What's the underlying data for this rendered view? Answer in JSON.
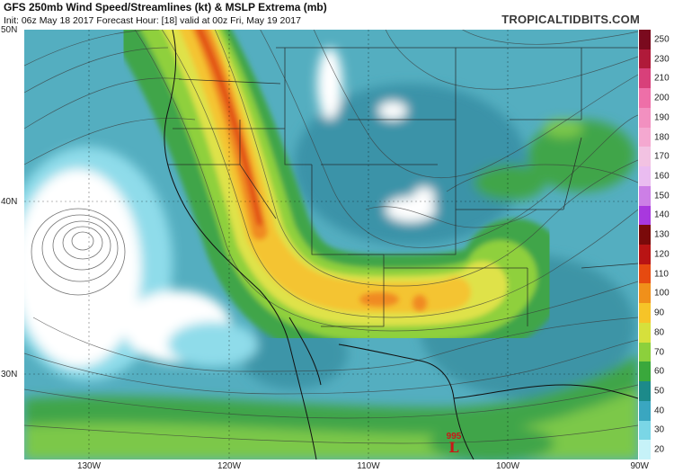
{
  "header": {
    "title": "GFS 250mb Wind Speed/Streamlines (kt) & MSLP Extrema (mb)",
    "subtitle": "Init: 06z May 18 2017   Forecast Hour: [18]   valid at 00z Fri, May 19 2017",
    "brand": "TROPICALTIDBITS.COM"
  },
  "map": {
    "lat_labels": [
      "50N",
      "40N",
      "30N"
    ],
    "lon_labels": [
      "130W",
      "120W",
      "110W",
      "100W",
      "90W"
    ],
    "extremum": {
      "value": "995",
      "letter": "L",
      "color": "#c81818"
    }
  },
  "colorbar": {
    "unit": "kt",
    "labels": [
      "250",
      "230",
      "210",
      "200",
      "190",
      "180",
      "170",
      "160",
      "150",
      "140",
      "130",
      "120",
      "110",
      "100",
      "90",
      "80",
      "70",
      "60",
      "50",
      "40",
      "30",
      "20"
    ],
    "colors": [
      "#7a0a1e",
      "#b01a3a",
      "#d8407a",
      "#ee6fa8",
      "#f290c0",
      "#f4a8d0",
      "#f2c2e2",
      "#eabcf0",
      "#cc7fe6",
      "#a838de",
      "#7a0a0a",
      "#b81414",
      "#e64a10",
      "#f0901a",
      "#f6c428",
      "#d6e03c",
      "#8cd03c",
      "#3aa83c",
      "#1c8a8a",
      "#3aa6c0",
      "#7ad6e6",
      "#c6f2f8"
    ]
  }
}
